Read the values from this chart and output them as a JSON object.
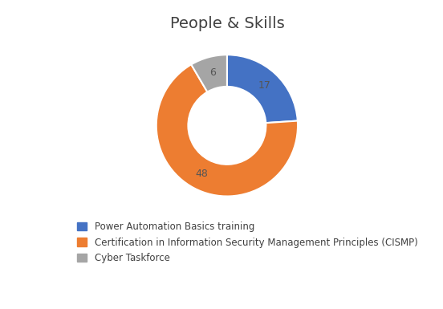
{
  "title": "People & Skills",
  "values": [
    17,
    48,
    6
  ],
  "labels": [
    "Power Automation Basics training",
    "Certification in Information Security Management Principles (CISMP)",
    "Cyber Taskforce"
  ],
  "colors": [
    "#4472C4",
    "#ED7D31",
    "#A5A5A5"
  ],
  "wedge_labels": [
    "17",
    "48",
    "6"
  ],
  "title_fontsize": 14,
  "label_fontsize": 9,
  "legend_fontsize": 8.5,
  "background_color": "#FFFFFF",
  "donut_width": 0.45,
  "startangle": 90
}
